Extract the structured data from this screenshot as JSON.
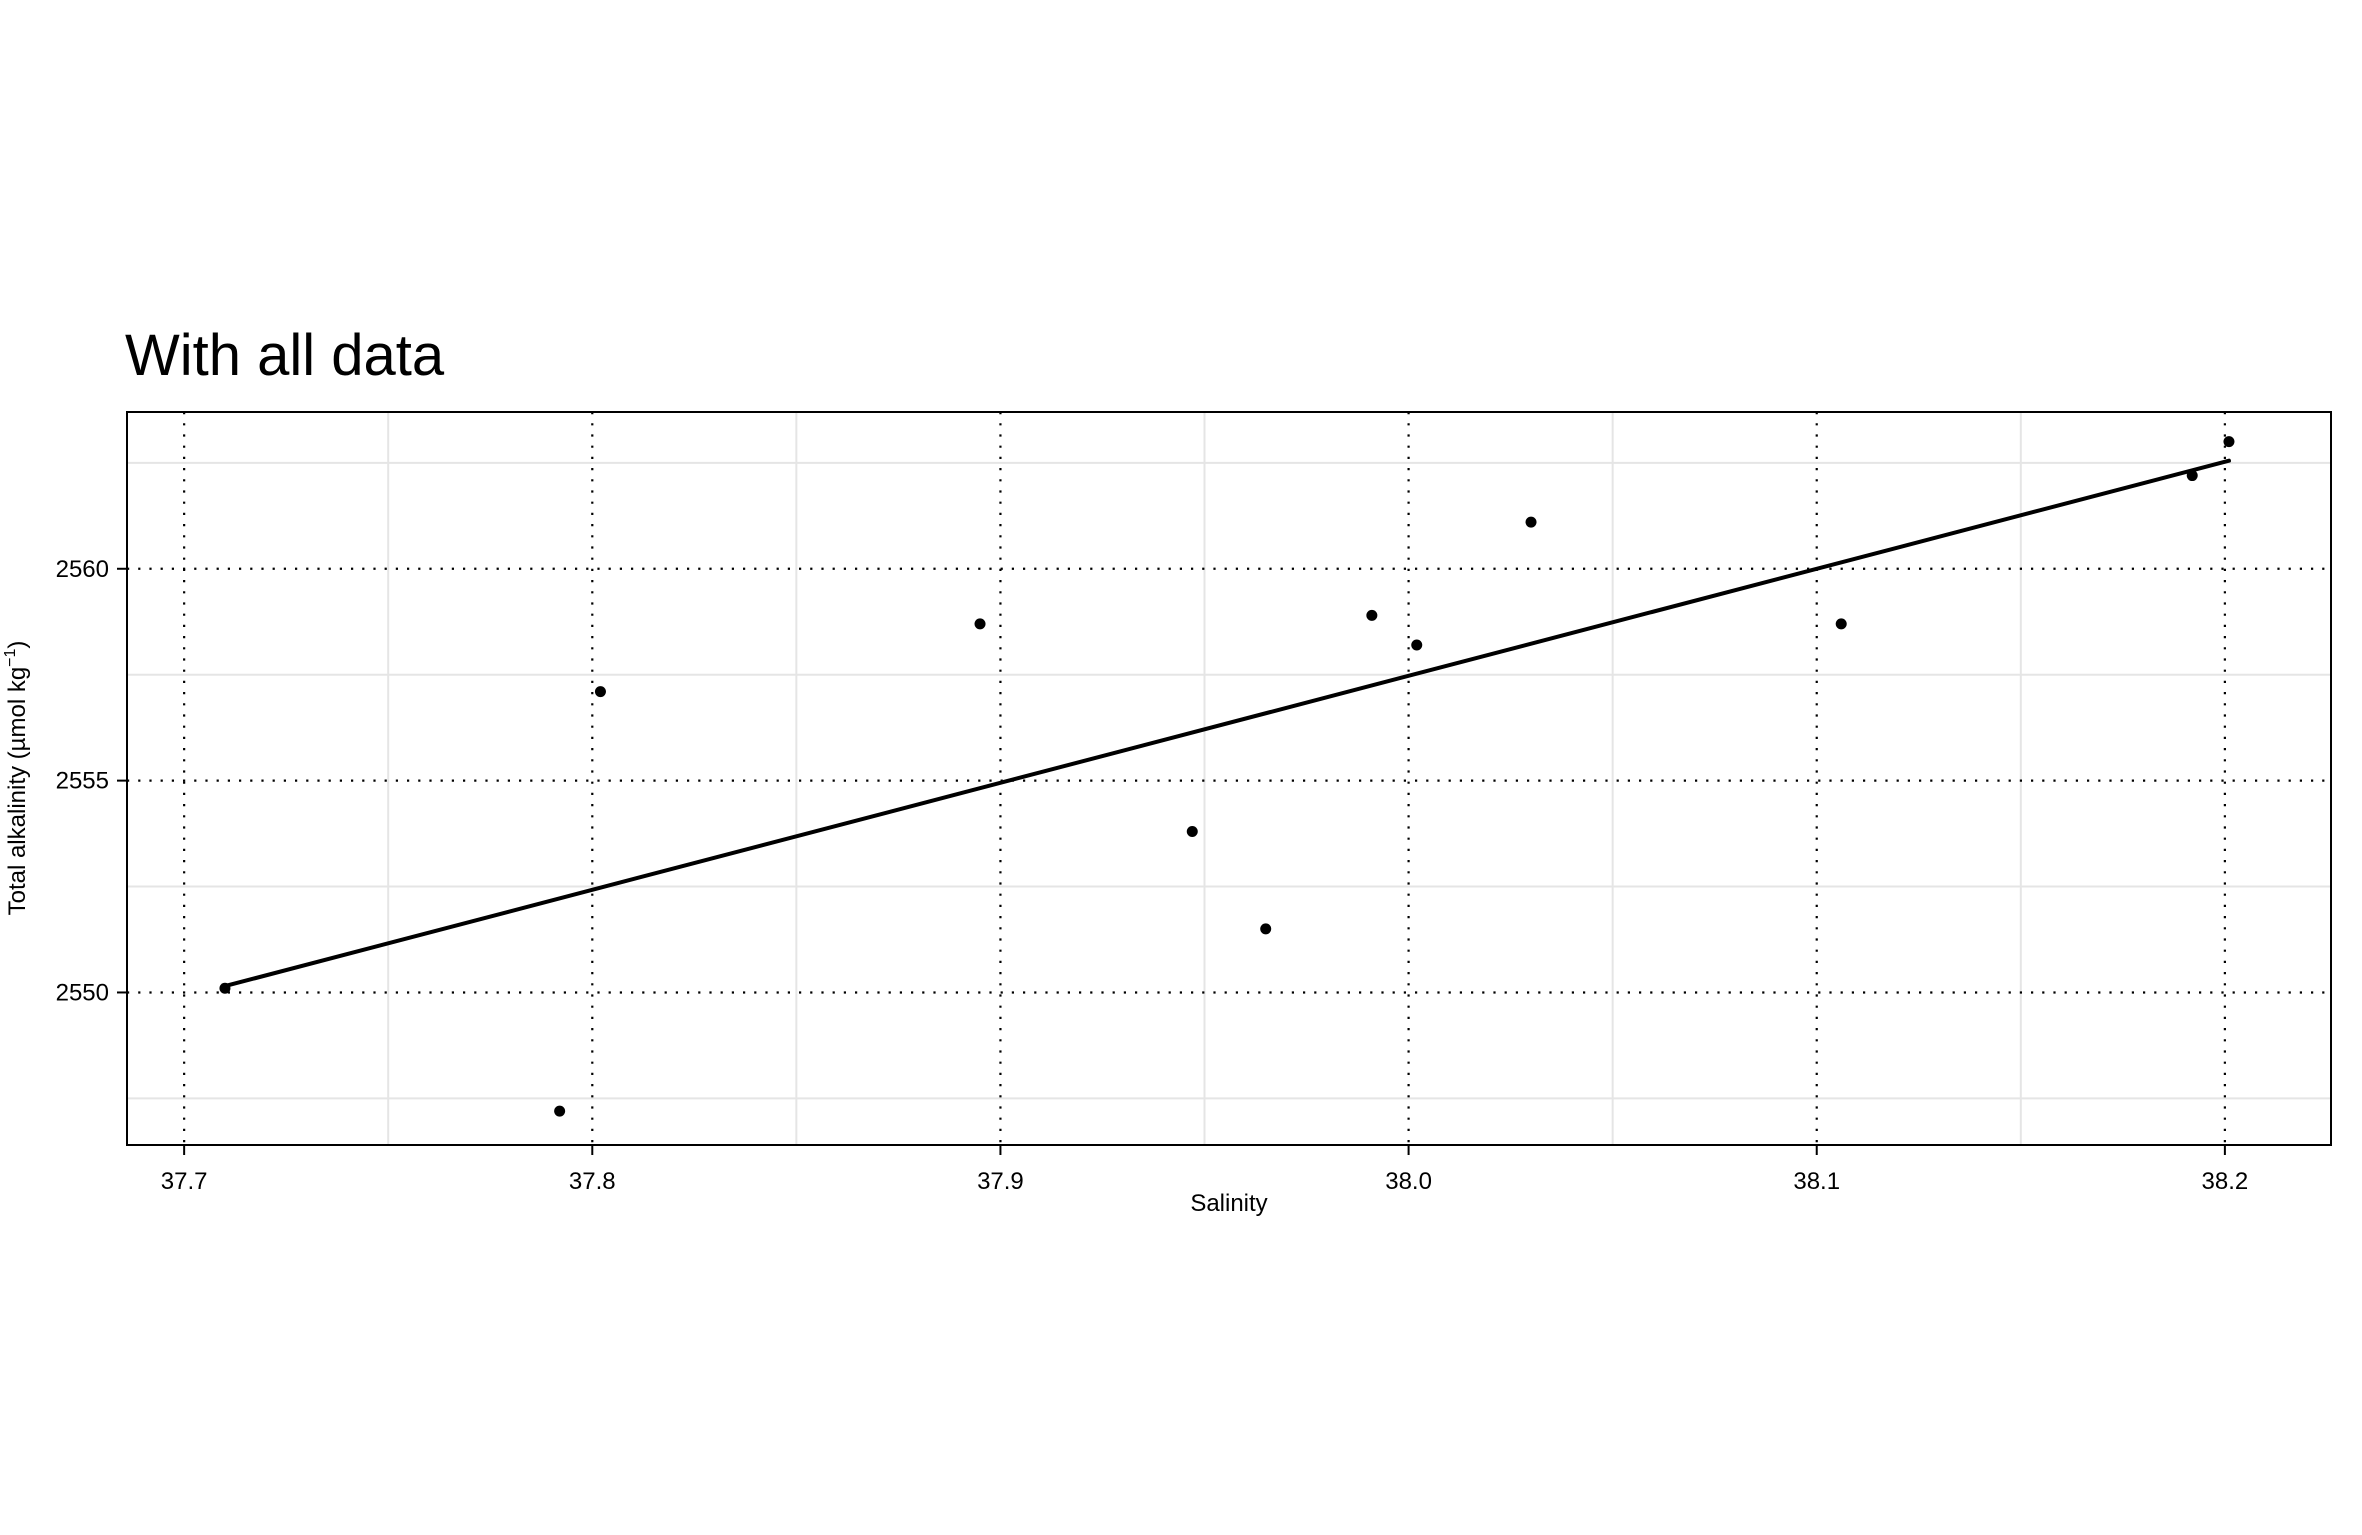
{
  "chart_data": {
    "type": "scatter",
    "title": "With all data",
    "xlabel": "Salinity",
    "ylabel": "Total alkalinity (µmol kg",
    "ylabel_superscript": "−1",
    "ylabel_suffix": ")",
    "xlim": [
      37.686,
      38.226
    ],
    "ylim": [
      2546.4,
      2563.7
    ],
    "x_ticks": [
      37.7,
      37.8,
      37.9,
      38.0,
      38.1,
      38.2
    ],
    "x_tick_labels": [
      "37.7",
      "37.8",
      "37.9",
      "38.0",
      "38.1",
      "38.2"
    ],
    "y_ticks": [
      2550,
      2555,
      2560
    ],
    "y_tick_labels": [
      "2550",
      "2555",
      "2560"
    ],
    "grid": true,
    "points": [
      {
        "x": 37.71,
        "y": 2550.1
      },
      {
        "x": 37.792,
        "y": 2547.2
      },
      {
        "x": 37.802,
        "y": 2557.1
      },
      {
        "x": 37.895,
        "y": 2558.7
      },
      {
        "x": 37.947,
        "y": 2553.8
      },
      {
        "x": 37.965,
        "y": 2551.5
      },
      {
        "x": 37.991,
        "y": 2558.9
      },
      {
        "x": 38.002,
        "y": 2558.2
      },
      {
        "x": 38.03,
        "y": 2561.1
      },
      {
        "x": 38.106,
        "y": 2558.7
      },
      {
        "x": 38.192,
        "y": 2562.2
      },
      {
        "x": 38.201,
        "y": 2563.0
      }
    ],
    "fit_line": [
      {
        "x": 37.71,
        "y": 2550.15
      },
      {
        "x": 38.201,
        "y": 2562.55
      }
    ],
    "colors": {
      "points": "#000000",
      "line": "#000000",
      "grid_minor": "#e5e5e5",
      "grid_dotted": "#000000",
      "frame": "#000000"
    }
  }
}
